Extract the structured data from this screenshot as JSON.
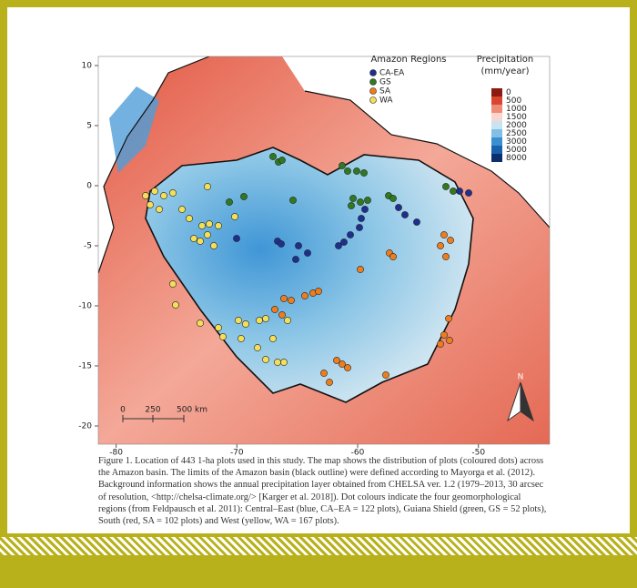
{
  "map": {
    "legend_regions": {
      "title": "Amazon Regions",
      "items": [
        "CA-EA",
        "GS",
        "SA",
        "WA"
      ],
      "colors": [
        "#1f2f8f",
        "#2f7a1f",
        "#ef7d1b",
        "#f3df58"
      ]
    },
    "legend_precip": {
      "title": "Precipitation",
      "unit": "(mm/year)",
      "labels": [
        0,
        500,
        1000,
        1500,
        2000,
        2500,
        3000,
        5000,
        8000
      ],
      "colors": [
        "#8c1a10",
        "#d8462f",
        "#ee8c78",
        "#fad6ce",
        "#c9e3f1",
        "#7fc0e4",
        "#3a8fd1",
        "#1762aa",
        "#0c2e6d"
      ]
    },
    "yticks": [
      10,
      5,
      0,
      -5,
      -10,
      -15,
      -20
    ],
    "xticks": [
      -80,
      -70,
      -60,
      -50
    ],
    "scale_bar": {
      "labels": [
        "0",
        "250",
        "500 km"
      ]
    },
    "north": "N"
  },
  "caption": "Figure 1. Location of 443 1-ha plots used in this study. The map shows the distribution of plots (coloured dots) across the Amazon basin. The limits of the Amazon basin (black outline) were defined according to Mayorga et al. (2012). Background information shows the annual precipitation layer obtained from CHELSA ver. 1.2 (1979–2013, 30 arcsec of resolution, <http://chelsa-climate.org/> [Karger et al. 2018]). Dot colours indicate the four geomorphological regions (from Feldpausch et al. 2011): Central–East (blue, CA–EA = 122 plots), Guiana Shield (green, GS = 52 plots), South (red, SA = 102 plots) and West (yellow, WA = 167 plots)."
}
